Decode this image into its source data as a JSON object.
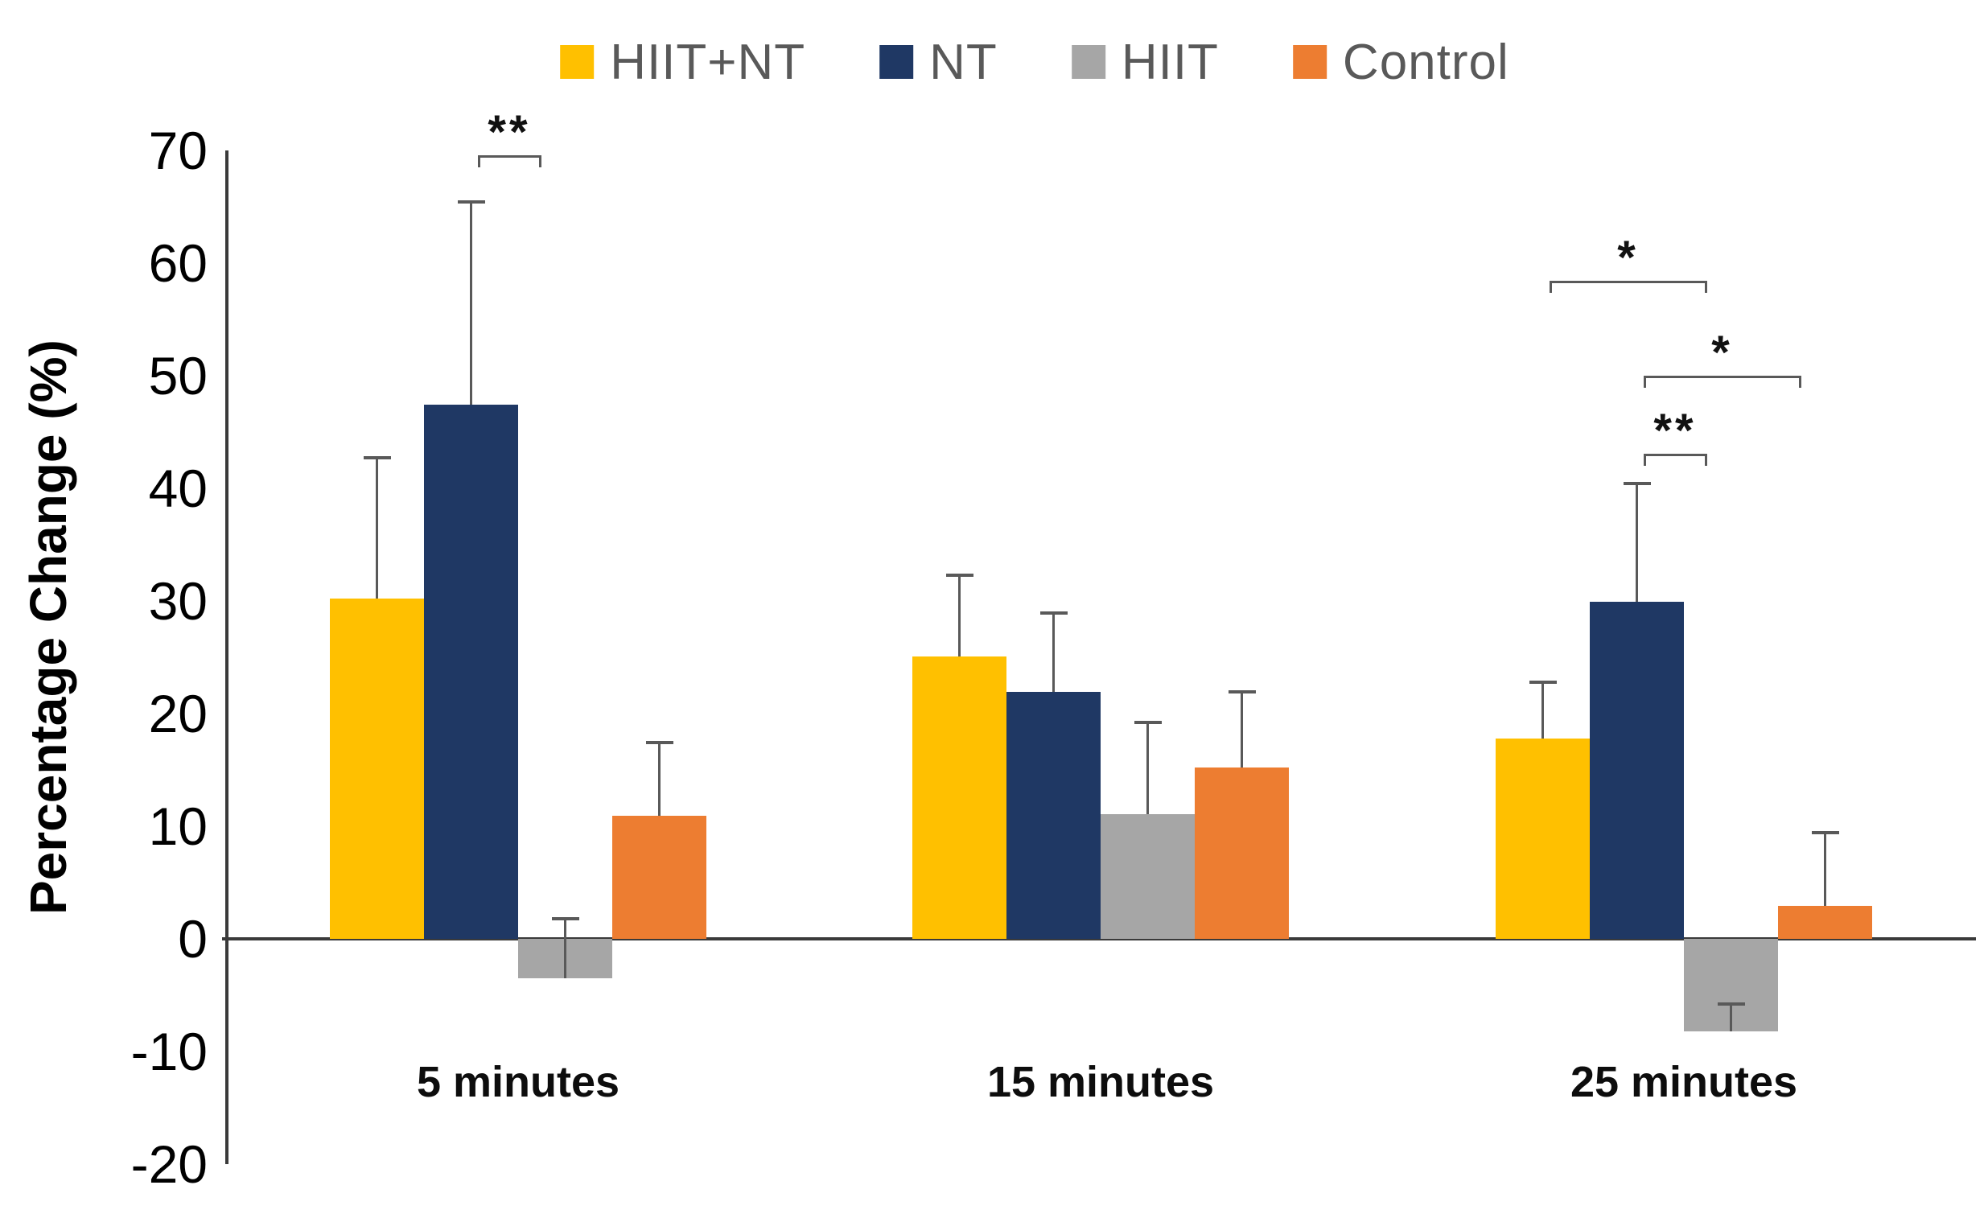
{
  "legend": {
    "items": [
      {
        "label": "HIIT+NT",
        "color": "#FFC000"
      },
      {
        "label": "NT",
        "color": "#1F3864"
      },
      {
        "label": "HIIT",
        "color": "#A6A6A6"
      },
      {
        "label": "Control",
        "color": "#ED7D31"
      }
    ]
  },
  "chart_data": {
    "type": "bar",
    "title": "",
    "ylabel": "Percentage Change (%)",
    "xlabel": "",
    "categories": [
      "5 minutes",
      "15 minutes",
      "25 minutes"
    ],
    "series": [
      {
        "name": "HIIT+NT",
        "color": "#FFC000",
        "values": [
          30.2,
          25.1,
          17.8
        ],
        "error_tops": [
          42.7,
          32.3,
          22.8
        ]
      },
      {
        "name": "NT",
        "color": "#1F3864",
        "values": [
          47.4,
          21.9,
          29.9
        ],
        "error_tops": [
          65.4,
          28.9,
          40.4
        ]
      },
      {
        "name": "HIIT",
        "color": "#A6A6A6",
        "values": [
          -3.5,
          11.1,
          -8.2
        ],
        "error_tops": [
          1.8,
          19.2,
          -5.8
        ]
      },
      {
        "name": "Control",
        "color": "#ED7D31",
        "values": [
          10.9,
          15.2,
          2.9
        ],
        "error_tops": [
          17.4,
          21.9,
          9.4
        ]
      }
    ],
    "ylim": [
      -20,
      70
    ],
    "yticks": [
      70,
      60,
      50,
      40,
      30,
      20,
      10,
      0,
      -10,
      -20
    ],
    "grid": false,
    "legend_position": "top-center",
    "error_bar_color": "#595959",
    "axis_color": "#3a3a3a",
    "legend_text_color": "#595959",
    "annotations": [
      {
        "label": "**",
        "category_index": 0,
        "from_series": "NT",
        "to_series": "HIIT",
        "y_value": 69.6
      },
      {
        "label": "*",
        "category_index": 2,
        "from_series": "HIIT+NT",
        "to_series": "HIIT",
        "y_value": 58.4
      },
      {
        "label": "*",
        "category_index": 2,
        "from_series": "NT",
        "to_series": "Control",
        "y_value": 50.0
      },
      {
        "label": "**",
        "category_index": 2,
        "from_series": "NT",
        "to_series": "HIIT",
        "y_value": 43.1
      }
    ]
  }
}
